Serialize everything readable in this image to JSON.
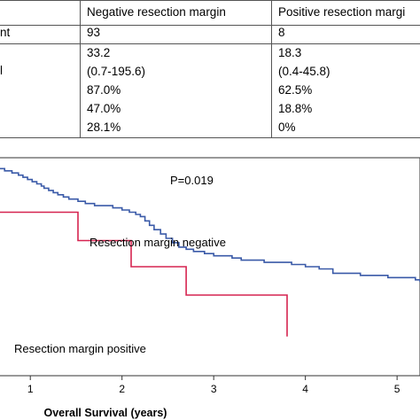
{
  "table": {
    "header": [
      "",
      "Negative resection margin",
      "Positive resection margi"
    ],
    "rows": [
      [
        "nt",
        "93",
        "8"
      ],
      [
        "l",
        "33.2",
        "18.3"
      ],
      [
        "",
        "(0.7-195.6)",
        "(0.4-45.8)"
      ],
      [
        "",
        "87.0%",
        "62.5%"
      ],
      [
        "",
        "47.0%",
        "18.8%"
      ],
      [
        "",
        "28.1%",
        "0%"
      ]
    ]
  },
  "chart_data": {
    "type": "line",
    "subtype": "kaplan-meier step",
    "title": "",
    "xlabel": "Overall Survival (years)",
    "ylabel": "",
    "xlim": [
      0.65,
      5.25
    ],
    "ylim": [
      0,
      1
    ],
    "x_ticks": [
      1,
      2,
      3,
      4,
      5
    ],
    "annotations": [
      "P=0.019",
      "Resection margin negative",
      "Resection margin positive"
    ],
    "colors": {
      "negative": "#3a5aa8",
      "positive": "#d62450"
    },
    "series": [
      {
        "name": "Resection margin negative",
        "color": "#3a5aa8",
        "points": [
          [
            0.65,
            0.95
          ],
          [
            0.72,
            0.94
          ],
          [
            0.8,
            0.93
          ],
          [
            0.87,
            0.92
          ],
          [
            0.92,
            0.91
          ],
          [
            0.97,
            0.9
          ],
          [
            1.02,
            0.89
          ],
          [
            1.07,
            0.88
          ],
          [
            1.12,
            0.87
          ],
          [
            1.15,
            0.86
          ],
          [
            1.2,
            0.85
          ],
          [
            1.25,
            0.84
          ],
          [
            1.3,
            0.83
          ],
          [
            1.36,
            0.82
          ],
          [
            1.42,
            0.81
          ],
          [
            1.48,
            0.81
          ],
          [
            1.52,
            0.8
          ],
          [
            1.6,
            0.79
          ],
          [
            1.7,
            0.78
          ],
          [
            1.8,
            0.78
          ],
          [
            1.9,
            0.77
          ],
          [
            2.0,
            0.76
          ],
          [
            2.08,
            0.75
          ],
          [
            2.15,
            0.74
          ],
          [
            2.2,
            0.73
          ],
          [
            2.25,
            0.71
          ],
          [
            2.3,
            0.69
          ],
          [
            2.35,
            0.67
          ],
          [
            2.42,
            0.65
          ],
          [
            2.48,
            0.63
          ],
          [
            2.55,
            0.61
          ],
          [
            2.62,
            0.59
          ],
          [
            2.7,
            0.58
          ],
          [
            2.78,
            0.57
          ],
          [
            2.9,
            0.56
          ],
          [
            3.0,
            0.55
          ],
          [
            3.1,
            0.55
          ],
          [
            3.2,
            0.54
          ],
          [
            3.3,
            0.53
          ],
          [
            3.4,
            0.53
          ],
          [
            3.55,
            0.52
          ],
          [
            3.7,
            0.52
          ],
          [
            3.85,
            0.51
          ],
          [
            4.0,
            0.5
          ],
          [
            4.15,
            0.49
          ],
          [
            4.3,
            0.47
          ],
          [
            4.45,
            0.47
          ],
          [
            4.6,
            0.46
          ],
          [
            4.75,
            0.46
          ],
          [
            4.9,
            0.45
          ],
          [
            5.1,
            0.45
          ],
          [
            5.2,
            0.44
          ],
          [
            5.25,
            0.43
          ]
        ]
      },
      {
        "name": "Resection margin positive",
        "color": "#d62450",
        "points": [
          [
            0.65,
            0.75
          ],
          [
            1.52,
            0.75
          ],
          [
            1.52,
            0.62
          ],
          [
            2.1,
            0.62
          ],
          [
            2.1,
            0.5
          ],
          [
            2.7,
            0.5
          ],
          [
            2.7,
            0.37
          ],
          [
            3.8,
            0.37
          ],
          [
            3.8,
            0.18
          ]
        ]
      }
    ]
  }
}
